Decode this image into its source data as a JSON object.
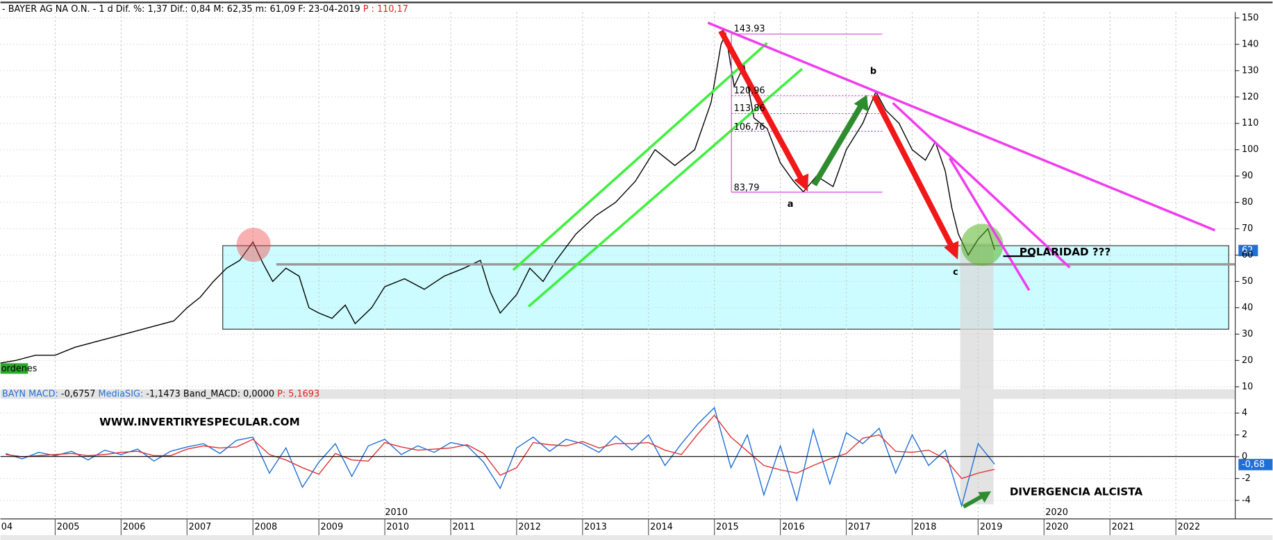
{
  "chart_data": [
    {
      "type": "line",
      "header": "- BAYER AG NA O.N. -  1 d Dif. %: 1,37 Dif.: 0,84 M: 62,35 m: 61,09 F: 23-04-2019",
      "header_price": "P : 110,17",
      "x": [
        2004.17,
        2004.4,
        2004.7,
        2005.0,
        2005.3,
        2005.6,
        2005.9,
        2006.2,
        2006.5,
        2006.8,
        2007.0,
        2007.2,
        2007.4,
        2007.6,
        2007.8,
        2008.0,
        2008.15,
        2008.3,
        2008.5,
        2008.7,
        2008.85,
        2009.0,
        2009.2,
        2009.4,
        2009.55,
        2009.8,
        2010.0,
        2010.3,
        2010.6,
        2010.9,
        2011.2,
        2011.45,
        2011.6,
        2011.75,
        2012.0,
        2012.2,
        2012.4,
        2012.6,
        2012.9,
        2013.2,
        2013.5,
        2013.8,
        2014.1,
        2014.4,
        2014.7,
        2014.95,
        2015.1,
        2015.17,
        2015.3,
        2015.45,
        2015.6,
        2015.8,
        2016.0,
        2016.2,
        2016.35,
        2016.55,
        2016.8,
        2017.0,
        2017.25,
        2017.45,
        2017.6,
        2017.8,
        2018.0,
        2018.2,
        2018.35,
        2018.5,
        2018.6,
        2018.7,
        2018.85,
        2019.0,
        2019.15,
        2019.25
      ],
      "series": [
        {
          "color": "#000000",
          "values": [
            19,
            20,
            22,
            22,
            25,
            27,
            29,
            31,
            33,
            35,
            40,
            44,
            50,
            55,
            58,
            65,
            57,
            50,
            55,
            52,
            40,
            38,
            36,
            41,
            34,
            40,
            48,
            51,
            47,
            52,
            55,
            58,
            46,
            38,
            45,
            55,
            50,
            58,
            68,
            75,
            80,
            88,
            100,
            94,
            100,
            118,
            140,
            144,
            124,
            132,
            112,
            108,
            95,
            88,
            84,
            90,
            86,
            100,
            110,
            122,
            115,
            110,
            100,
            96,
            103,
            92,
            78,
            68,
            60,
            66,
            70,
            62
          ]
        }
      ],
      "xlim": [
        2004.17,
        2022.9
      ],
      "ylim": [
        9.1,
        152.2
      ],
      "yticks": [
        10,
        20,
        30,
        40,
        50,
        60,
        70,
        80,
        90,
        100,
        110,
        120,
        130,
        140,
        150
      ],
      "last_label": "62",
      "fib_labels": [
        "143.93",
        "120,96",
        "113,86",
        "106,76",
        "83,79"
      ],
      "letters": [
        "a",
        "b",
        "c"
      ],
      "polaridad": "POLARIDAD ???",
      "tag": "ordenes"
    },
    {
      "type": "line",
      "header": [
        "BAYN MACD:",
        "-0,6757",
        "MediaSIG:",
        "-1,1473 Band_MACD: 0,0000",
        "P: 5,1693"
      ],
      "x": [
        2004.25,
        2004.5,
        2004.75,
        2005,
        2005.25,
        2005.5,
        2005.75,
        2006,
        2006.25,
        2006.5,
        2006.75,
        2007,
        2007.25,
        2007.5,
        2007.75,
        2008,
        2008.25,
        2008.5,
        2008.75,
        2009,
        2009.25,
        2009.5,
        2009.75,
        2010,
        2010.25,
        2010.5,
        2010.75,
        2011,
        2011.25,
        2011.5,
        2011.75,
        2012,
        2012.25,
        2012.5,
        2012.75,
        2013,
        2013.25,
        2013.5,
        2013.75,
        2014,
        2014.25,
        2014.5,
        2014.75,
        2015,
        2015.25,
        2015.5,
        2015.75,
        2016,
        2016.25,
        2016.5,
        2016.75,
        2017,
        2017.25,
        2017.5,
        2017.75,
        2018,
        2018.25,
        2018.5,
        2018.75,
        2019,
        2019.25
      ],
      "series": [
        {
          "color": "#1f6fd6",
          "values": [
            0.3,
            -0.2,
            0.4,
            0.1,
            0.5,
            -0.3,
            0.6,
            0.2,
            0.7,
            -0.4,
            0.5,
            0.9,
            1.2,
            0.3,
            1.5,
            1.8,
            -1.5,
            0.8,
            -2.8,
            -0.5,
            1.2,
            -1.8,
            1.0,
            1.6,
            0.2,
            1.0,
            0.4,
            1.3,
            1.0,
            -0.5,
            -2.9,
            0.8,
            1.8,
            0.5,
            1.6,
            1.2,
            0.4,
            1.9,
            0.6,
            2.0,
            -0.8,
            1.2,
            3.0,
            4.5,
            -1.0,
            2.0,
            -3.5,
            1.0,
            -4.0,
            2.5,
            -2.5,
            2.2,
            1.2,
            2.6,
            -1.5,
            2.0,
            -0.8,
            0.6,
            -4.5,
            1.2,
            -0.68
          ]
        },
        {
          "color": "#e03030",
          "values": [
            0.2,
            0.0,
            0.1,
            0.2,
            0.3,
            0.1,
            0.2,
            0.4,
            0.5,
            0.1,
            0.1,
            0.7,
            1.0,
            0.8,
            0.9,
            1.6,
            0.2,
            -0.3,
            -1.0,
            -1.6,
            0.3,
            -0.3,
            -0.4,
            1.3,
            0.9,
            0.6,
            0.7,
            0.8,
            1.1,
            0.3,
            -1.7,
            -1.0,
            1.3,
            1.1,
            1.0,
            1.4,
            0.8,
            1.2,
            1.2,
            1.3,
            0.6,
            0.2,
            2.1,
            3.8,
            1.8,
            0.5,
            -0.8,
            -1.2,
            -1.5,
            -0.8,
            -0.2,
            0.3,
            1.7,
            2.0,
            0.5,
            0.4,
            0.6,
            -0.2,
            -2.0,
            -1.5,
            -1.15
          ]
        }
      ],
      "xlim": [
        2004.17,
        2022.9
      ],
      "ylim": [
        -5.7,
        5.3
      ],
      "yticks": [
        -4,
        -2,
        0,
        2,
        4
      ],
      "xticks": [
        {
          "value": 2004,
          "label": "04"
        },
        2005,
        2006,
        2007,
        2008,
        2009,
        2010,
        2011,
        2012,
        2013,
        2014,
        2015,
        2016,
        2017,
        2018,
        2019,
        2020,
        2021,
        2022
      ],
      "decade_labels": [
        "2010",
        "2020"
      ],
      "last_label": "-0,68",
      "watermark": "WWW.INVERTIRYESPECULAR.COM",
      "annotation": "DIVERGENCIA ALCISTA"
    }
  ]
}
